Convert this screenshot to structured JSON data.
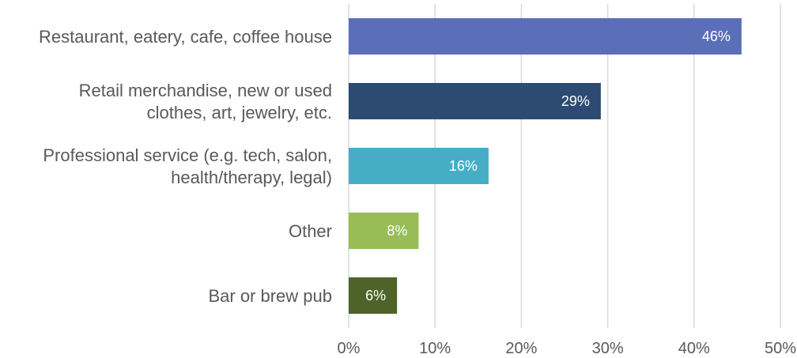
{
  "chart_data": {
    "type": "bar",
    "orientation": "horizontal",
    "categories": [
      [
        "Restaurant, eatery, cafe, coffee house"
      ],
      [
        "Retail merchandise, new or used",
        "clothes, art, jewelry, etc."
      ],
      [
        "Professional service (e.g. tech, salon,",
        "health/therapy, legal)"
      ],
      [
        "Other"
      ],
      [
        "Bar or brew pub"
      ]
    ],
    "values": [
      45.5,
      29.2,
      16.2,
      8.1,
      5.6
    ],
    "data_labels": [
      "46%",
      "29%",
      "16%",
      "8%",
      "6%"
    ],
    "colors": [
      "#5b6fb9",
      "#2d4b72",
      "#47adc7",
      "#98bd57",
      "#4e6327"
    ],
    "xlim": [
      0,
      50
    ],
    "x_ticks": [
      0,
      10,
      20,
      30,
      40,
      50
    ],
    "x_tick_labels": [
      "0%",
      "10%",
      "20%",
      "30%",
      "40%",
      "50%"
    ],
    "grid": true,
    "title": "",
    "xlabel": "",
    "ylabel": ""
  }
}
